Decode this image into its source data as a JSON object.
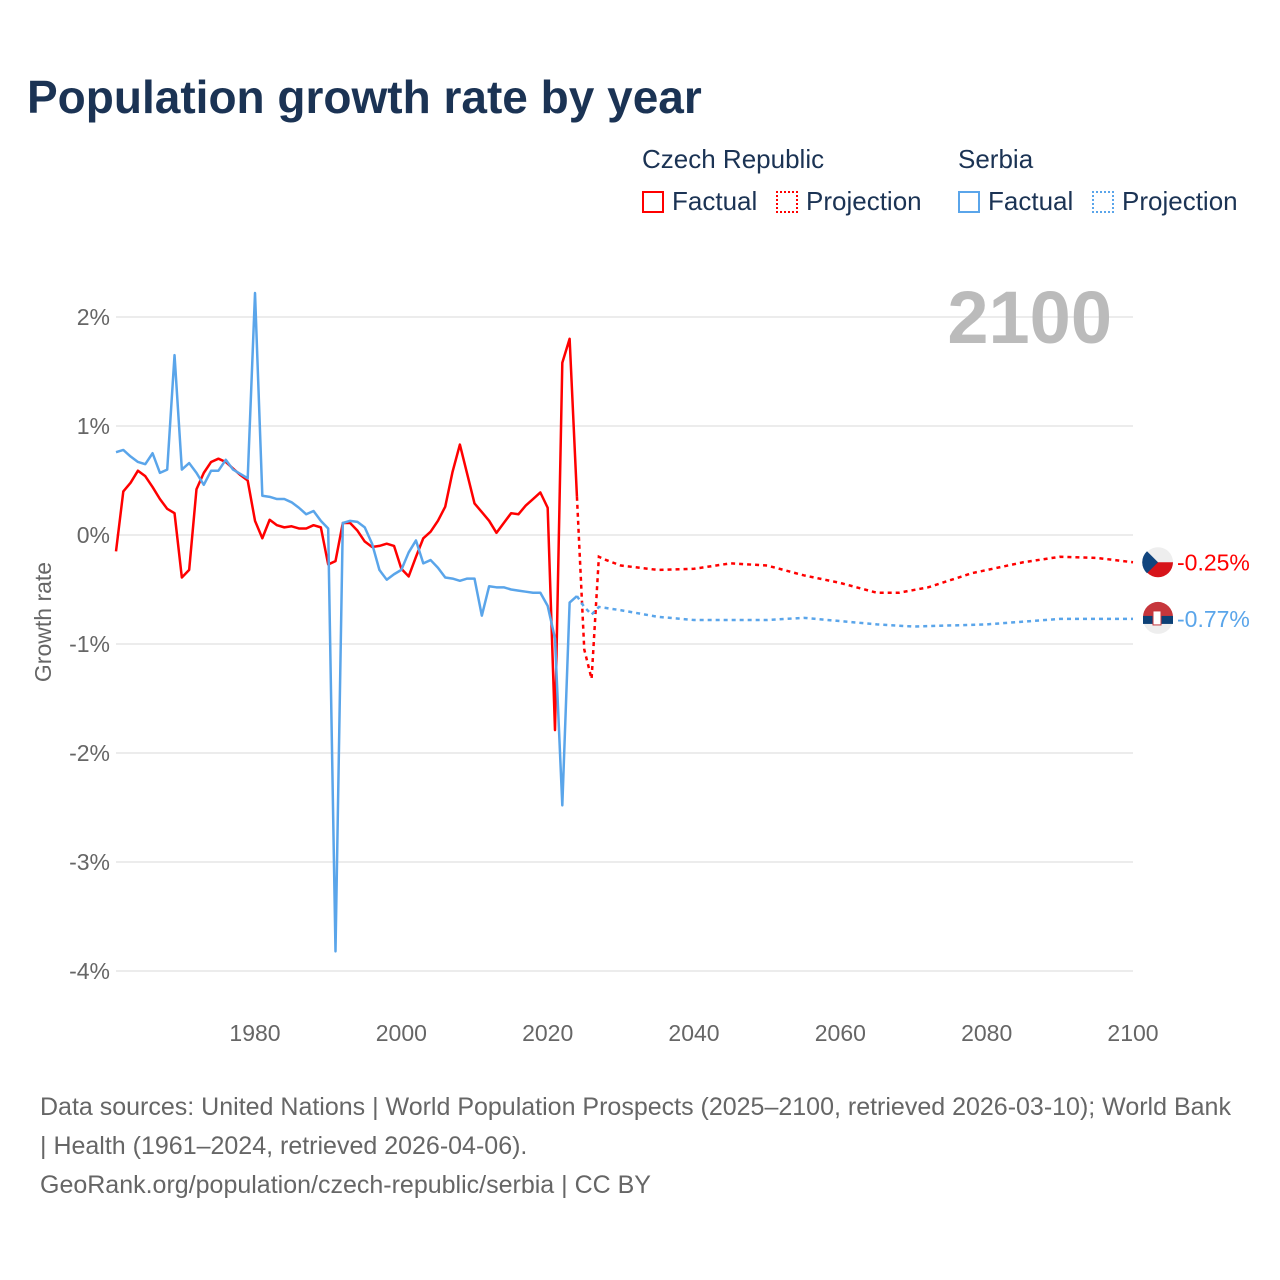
{
  "title": "Population growth rate by year",
  "legend": {
    "czech_title": "Czech Republic",
    "serbia_title": "Serbia",
    "factual": "Factual",
    "projection": "Projection"
  },
  "colors": {
    "czech": "#ff0000",
    "serbia": "#5aa5ea"
  },
  "footer": {
    "line1": "Data sources: United Nations | World Population Prospects (2025–2100, retrieved 2026-03-10); World Bank | Health (1961–2024, retrieved 2026-04-06).",
    "line2": "GeoRank.org/population/czech-republic/serbia | CC BY"
  },
  "chart_data": {
    "type": "line",
    "title": "Population growth rate by year",
    "xlabel": "",
    "ylabel": "Growth rate",
    "year_label": "2100",
    "xlim": [
      1961,
      2100
    ],
    "ylim": [
      -4.3,
      2.3
    ],
    "xticks": [
      1980,
      2000,
      2020,
      2040,
      2060,
      2080,
      2100
    ],
    "yticks": [
      {
        "v": 2,
        "l": "2%"
      },
      {
        "v": 1,
        "l": "1%"
      },
      {
        "v": 0,
        "l": "0%"
      },
      {
        "v": -1,
        "l": "-1%"
      },
      {
        "v": -2,
        "l": "-2%"
      },
      {
        "v": -3,
        "l": "-3%"
      },
      {
        "v": -4,
        "l": "-4%"
      }
    ],
    "series": [
      {
        "name": "Czech Republic",
        "end_label": "-0.25%",
        "factual_start": 1961,
        "factual": [
          -0.15,
          0.4,
          0.48,
          0.59,
          0.54,
          0.44,
          0.33,
          0.24,
          0.2,
          -0.39,
          -0.32,
          0.42,
          0.57,
          0.67,
          0.7,
          0.67,
          0.61,
          0.55,
          0.5,
          0.13,
          -0.03,
          0.14,
          0.09,
          0.07,
          0.08,
          0.06,
          0.06,
          0.09,
          0.07,
          -0.27,
          -0.24,
          0.11,
          0.11,
          0.04,
          -0.06,
          -0.11,
          -0.1,
          -0.08,
          -0.1,
          -0.31,
          -0.38,
          -0.2,
          -0.03,
          0.03,
          0.13,
          0.26,
          0.58,
          0.83,
          0.56,
          0.29,
          0.21,
          0.13,
          0.02,
          0.11,
          0.2,
          0.19,
          0.27,
          0.33,
          0.39,
          0.25,
          -1.79,
          1.58,
          1.8,
          0.35
        ],
        "projection": [
          [
            2024,
            0.35
          ],
          [
            2025,
            -1.05
          ],
          [
            2026,
            -1.32
          ],
          [
            2027,
            -0.2
          ],
          [
            2028,
            -0.23
          ],
          [
            2030,
            -0.28
          ],
          [
            2035,
            -0.32
          ],
          [
            2040,
            -0.31
          ],
          [
            2045,
            -0.26
          ],
          [
            2050,
            -0.28
          ],
          [
            2055,
            -0.37
          ],
          [
            2060,
            -0.44
          ],
          [
            2065,
            -0.53
          ],
          [
            2068,
            -0.53
          ],
          [
            2072,
            -0.48
          ],
          [
            2078,
            -0.35
          ],
          [
            2085,
            -0.25
          ],
          [
            2090,
            -0.2
          ],
          [
            2095,
            -0.21
          ],
          [
            2100,
            -0.25
          ]
        ]
      },
      {
        "name": "Serbia",
        "end_label": "-0.77%",
        "factual_start": 1961,
        "factual": [
          0.76,
          0.78,
          0.72,
          0.67,
          0.65,
          0.75,
          0.57,
          0.6,
          1.65,
          0.6,
          0.66,
          0.57,
          0.46,
          0.59,
          0.59,
          0.69,
          0.6,
          0.56,
          0.52,
          2.22,
          0.36,
          0.35,
          0.33,
          0.33,
          0.3,
          0.25,
          0.19,
          0.22,
          0.13,
          0.06,
          -3.82,
          0.11,
          0.13,
          0.12,
          0.07,
          -0.08,
          -0.32,
          -0.41,
          -0.36,
          -0.32,
          -0.16,
          -0.05,
          -0.26,
          -0.23,
          -0.3,
          -0.39,
          -0.4,
          -0.42,
          -0.4,
          -0.4,
          -0.74,
          -0.47,
          -0.48,
          -0.48,
          -0.5,
          -0.51,
          -0.52,
          -0.53,
          -0.53,
          -0.65,
          -0.95,
          -2.48,
          -0.62,
          -0.56
        ],
        "projection": [
          [
            2024,
            -0.56
          ],
          [
            2025,
            -0.66
          ],
          [
            2026,
            -0.73
          ],
          [
            2027,
            -0.66
          ],
          [
            2030,
            -0.69
          ],
          [
            2035,
            -0.75
          ],
          [
            2040,
            -0.78
          ],
          [
            2045,
            -0.78
          ],
          [
            2050,
            -0.78
          ],
          [
            2055,
            -0.76
          ],
          [
            2060,
            -0.79
          ],
          [
            2065,
            -0.82
          ],
          [
            2070,
            -0.84
          ],
          [
            2080,
            -0.82
          ],
          [
            2090,
            -0.77
          ],
          [
            2100,
            -0.77
          ]
        ]
      }
    ]
  }
}
